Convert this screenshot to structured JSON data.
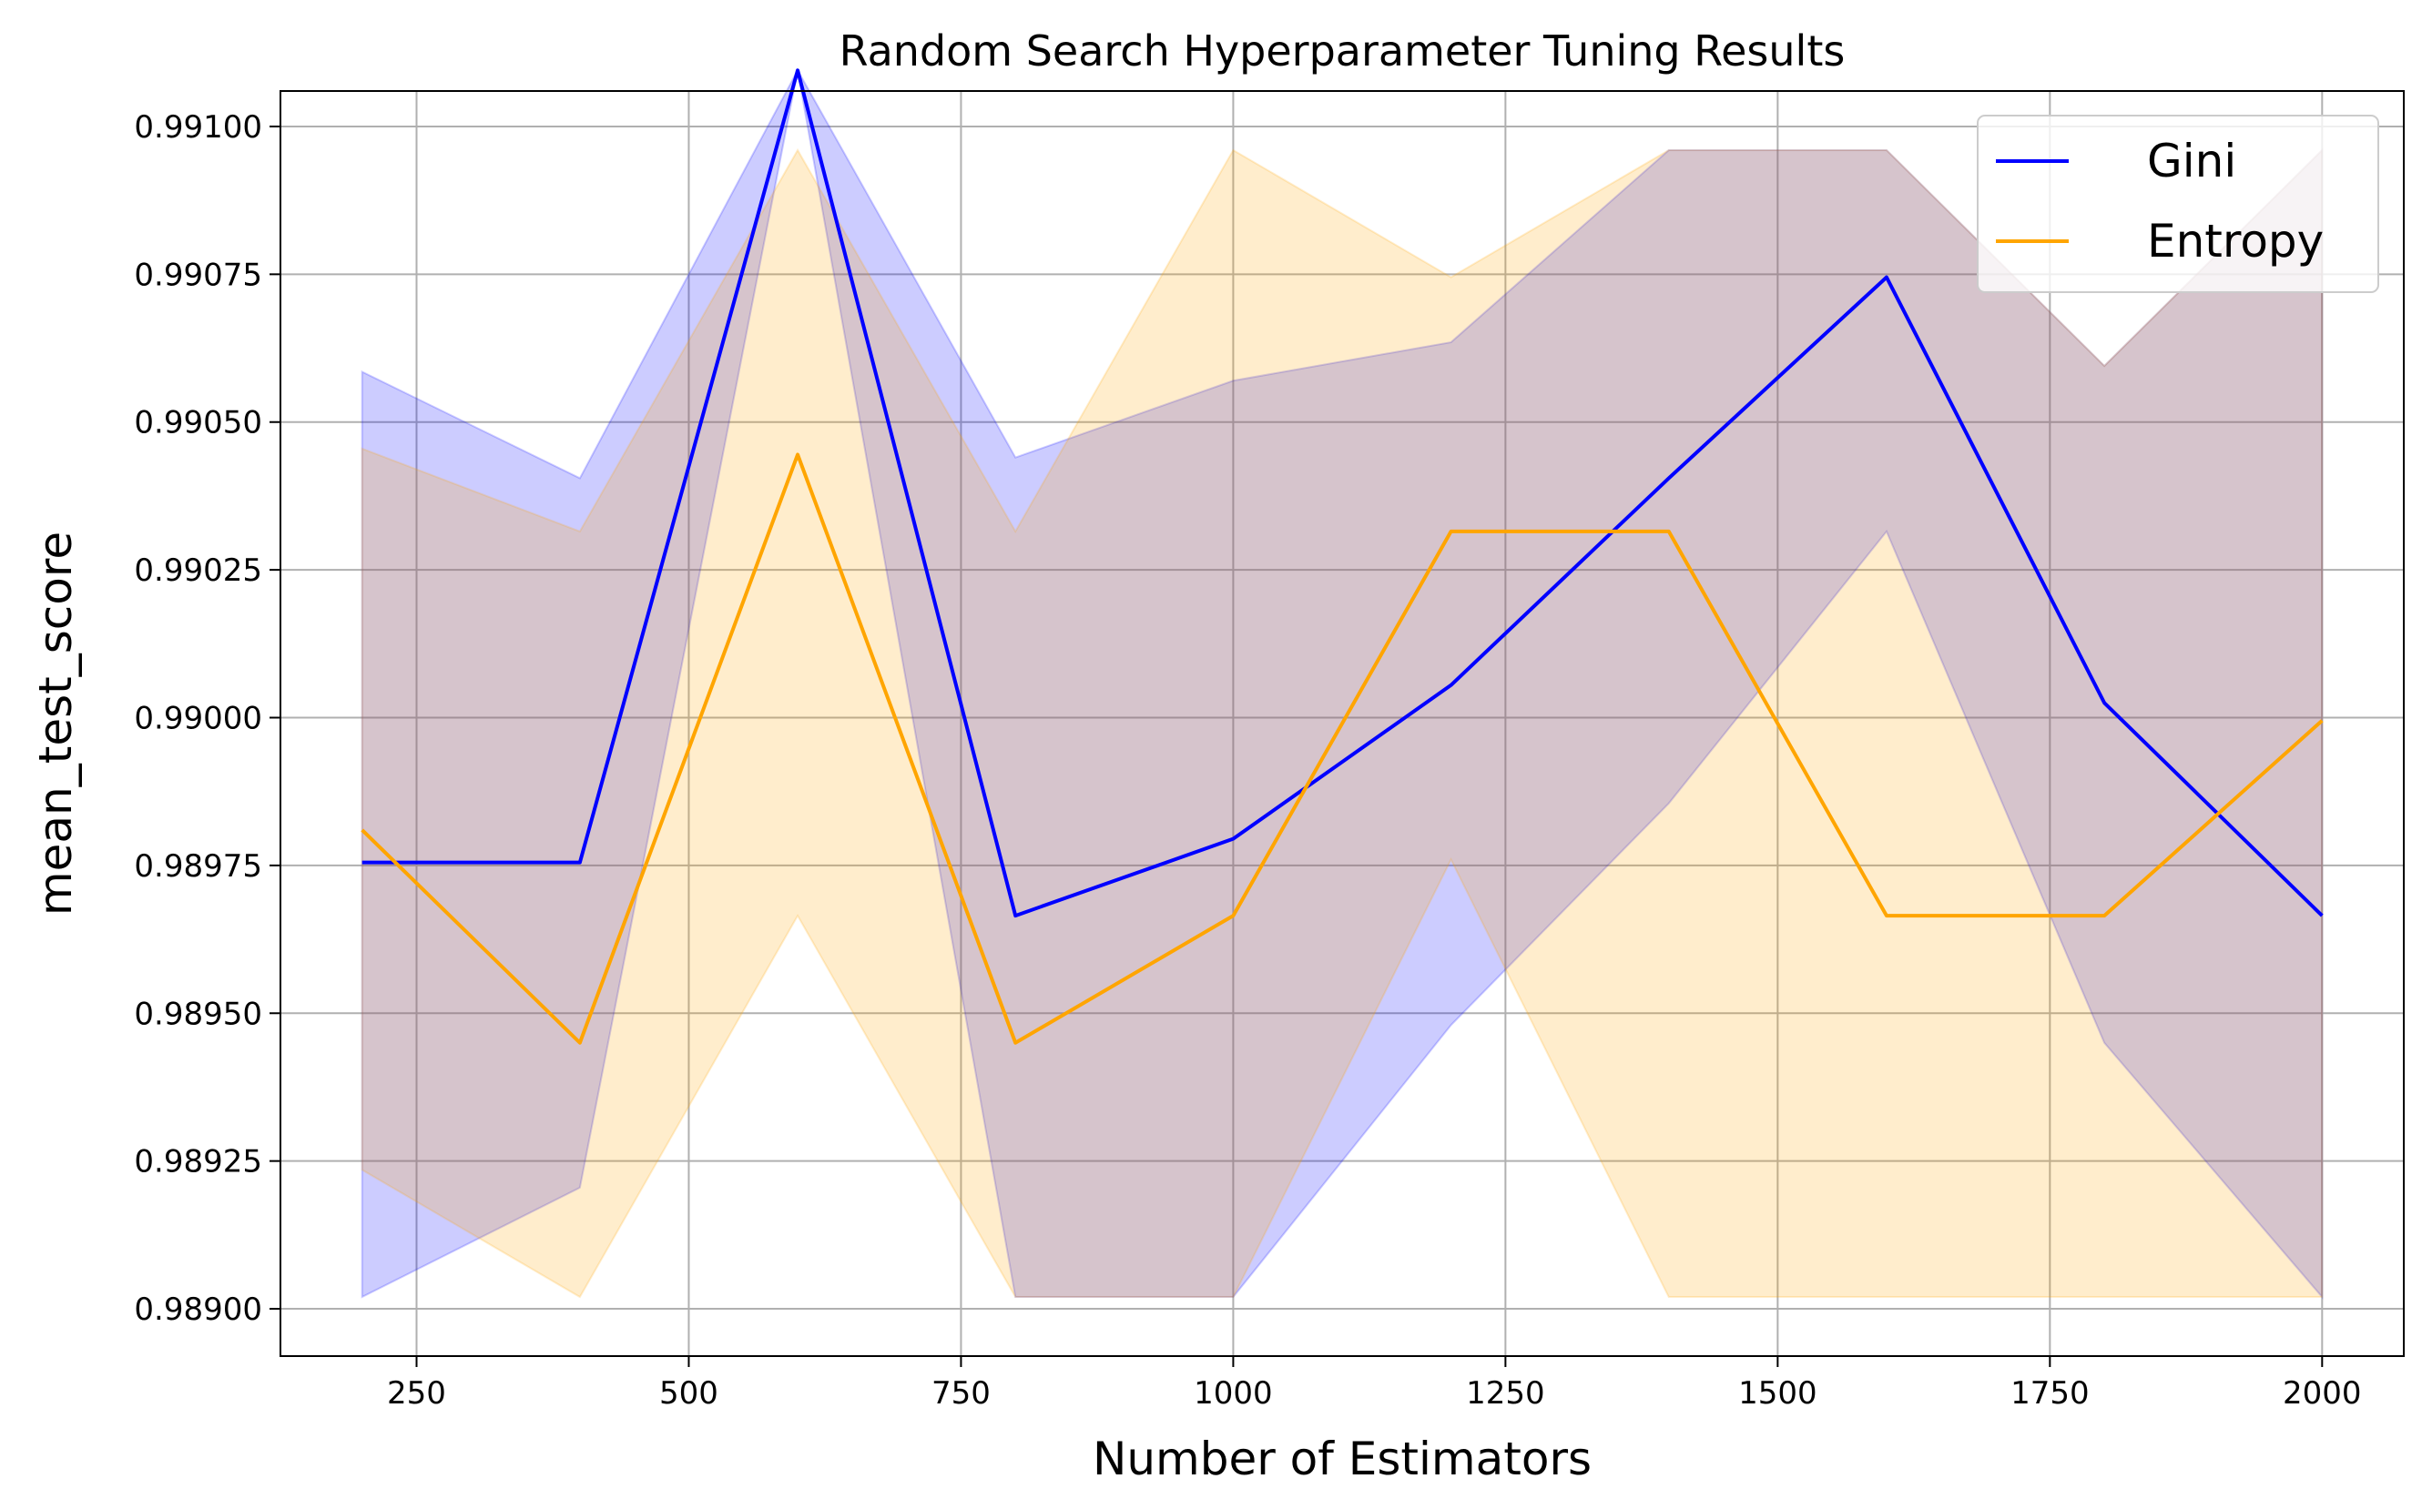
{
  "chart_data": {
    "type": "line",
    "title": "Random Search Hyperparameter Tuning Results",
    "xlabel": "Number of Estimators",
    "ylabel": "mean_test_score",
    "xlim": [
      125,
      2075
    ],
    "ylim": [
      0.98892,
      0.99106
    ],
    "xticks": [
      250,
      500,
      750,
      1000,
      1250,
      1500,
      1750,
      2000
    ],
    "xtick_labels": [
      "250",
      "500",
      "750",
      "1000",
      "1250",
      "1500",
      "1750",
      "2000"
    ],
    "yticks": [
      0.989,
      0.98925,
      0.9895,
      0.98975,
      0.99,
      0.99025,
      0.9905,
      0.99075,
      0.991
    ],
    "ytick_labels": [
      "0.98900",
      "0.98925",
      "0.98950",
      "0.98975",
      "0.99000",
      "0.99025",
      "0.99050",
      "0.99075",
      "0.99100"
    ],
    "grid": true,
    "legend_position": "top-right",
    "x": [
      200,
      400,
      600,
      800,
      1000,
      1200,
      1400,
      1600,
      1800,
      2000
    ],
    "series": [
      {
        "name": "Gini",
        "color": "#0000ff",
        "band_color": "#0000ff",
        "values": [
          0.989755,
          0.989755,
          0.991095,
          0.989665,
          0.989795,
          0.990055,
          0.990405,
          0.990745,
          0.990025,
          0.989665
        ],
        "band_lower": [
          0.98902,
          0.989205,
          0.991095,
          0.98902,
          0.98902,
          0.98948,
          0.989855,
          0.990315,
          0.98945,
          0.98902
        ],
        "band_upper": [
          0.990585,
          0.990405,
          0.991095,
          0.99044,
          0.99057,
          0.990635,
          0.99096,
          0.99096,
          0.990595,
          0.99096
        ]
      },
      {
        "name": "Entropy",
        "color": "#ffa500",
        "band_color": "#ffa500",
        "values": [
          0.98981,
          0.98945,
          0.990445,
          0.98945,
          0.989665,
          0.990315,
          0.990315,
          0.989665,
          0.989665,
          0.989995
        ],
        "band_lower": [
          0.989235,
          0.98902,
          0.989665,
          0.98902,
          0.98902,
          0.98976,
          0.98902,
          0.98902,
          0.98902,
          0.98902
        ],
        "band_upper": [
          0.990455,
          0.990315,
          0.99096,
          0.990315,
          0.99096,
          0.990745,
          0.99096,
          0.99096,
          0.990595,
          0.99096
        ]
      }
    ]
  }
}
